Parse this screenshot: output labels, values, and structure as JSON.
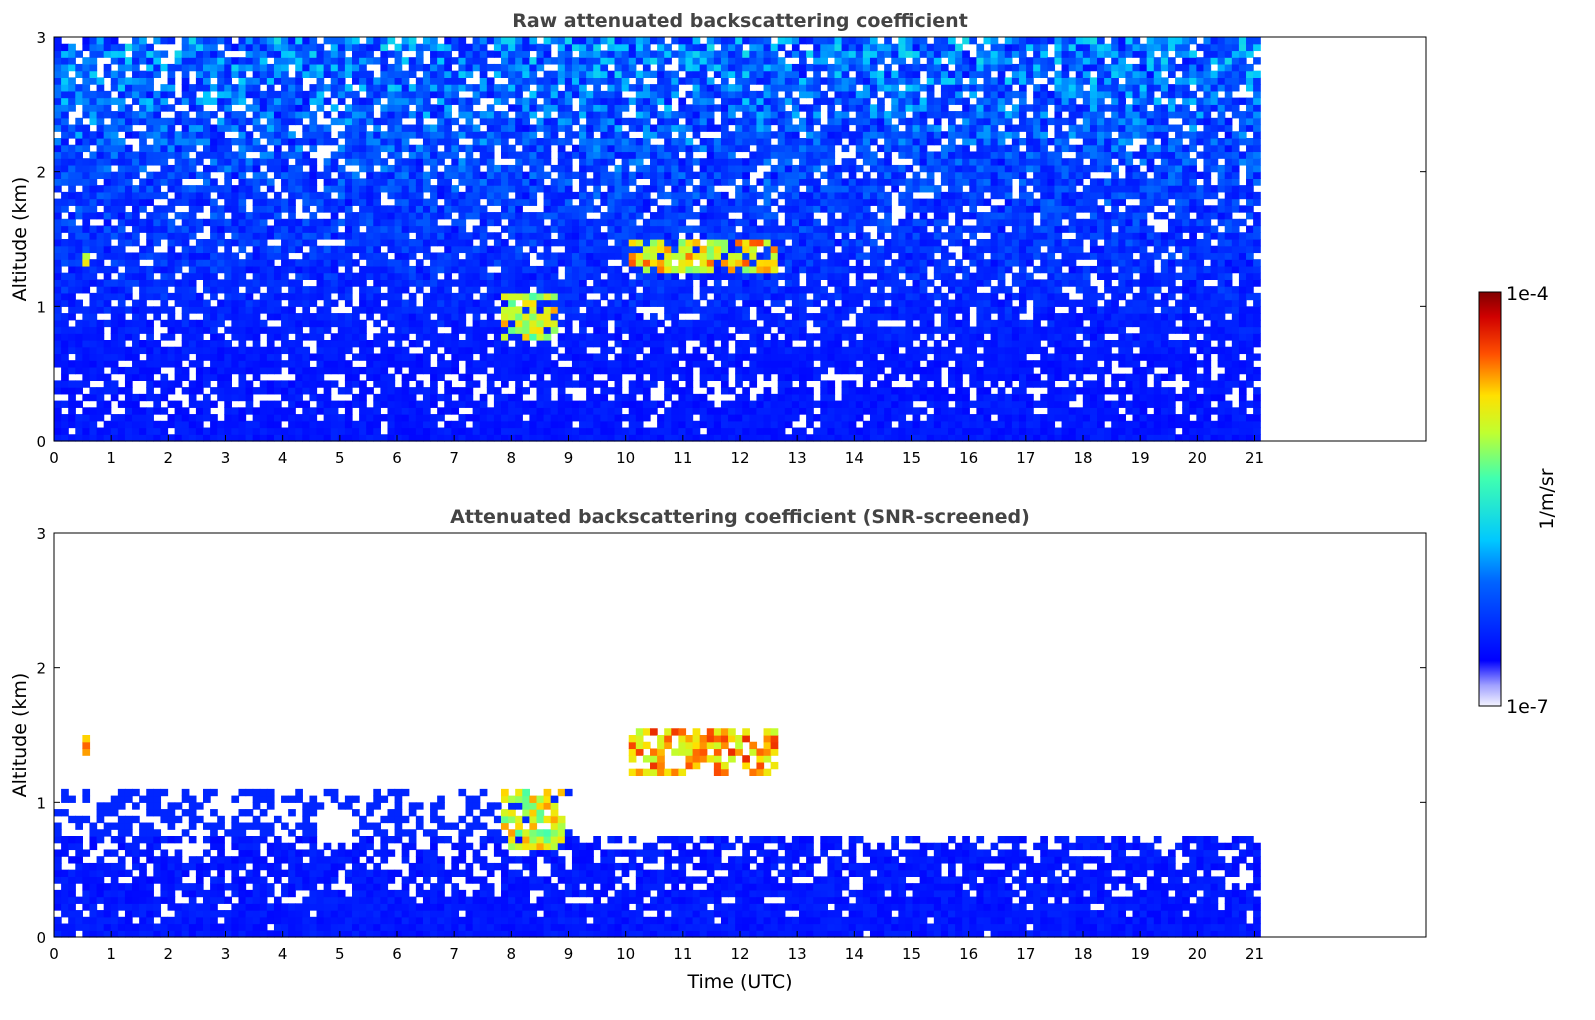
{
  "chart_data": [
    {
      "type": "heatmap",
      "title": "Raw attenuated backscattering coefficient",
      "xlabel": "",
      "ylabel": "Altitude (km)",
      "xlim": [
        0,
        24
      ],
      "ylim": [
        0,
        3
      ],
      "x_ticks": [
        "0",
        "1",
        "2",
        "3",
        "4",
        "5",
        "6",
        "7",
        "8",
        "9",
        "10",
        "11",
        "12",
        "13",
        "14",
        "15",
        "16",
        "17",
        "18",
        "19",
        "20",
        "21"
      ],
      "y_ticks": [
        "0",
        "1",
        "2",
        "3"
      ],
      "data_extent_hours": [
        0,
        21.1
      ],
      "colorscale": "log",
      "features": [
        {
          "desc": "dense low-level backscatter",
          "x": [
            0,
            21.1
          ],
          "y": [
            0,
            0.5
          ],
          "level": 0.18
        },
        {
          "desc": "noisy signal increasing with altitude",
          "x": [
            0,
            21.1
          ],
          "y": [
            0.5,
            3.0
          ],
          "level": 0.35
        },
        {
          "desc": "cloud layer",
          "x": [
            0.5,
            0.6
          ],
          "y": [
            1.3,
            1.45
          ],
          "level": 0.85
        },
        {
          "desc": "cloud layer",
          "x": [
            7.8,
            8.8
          ],
          "y": [
            0.75,
            1.1
          ],
          "level": 0.8
        },
        {
          "desc": "cloud layer",
          "x": [
            10.1,
            12.7
          ],
          "y": [
            1.25,
            1.5
          ],
          "level": 0.85
        }
      ]
    },
    {
      "type": "heatmap",
      "title": "Attenuated backscattering coefficient (SNR-screened)",
      "xlabel": "Time (UTC)",
      "ylabel": "Altitude (km)",
      "xlim": [
        0,
        24
      ],
      "ylim": [
        0,
        3
      ],
      "x_ticks": [
        "0",
        "1",
        "2",
        "3",
        "4",
        "5",
        "6",
        "7",
        "8",
        "9",
        "10",
        "11",
        "12",
        "13",
        "14",
        "15",
        "16",
        "17",
        "18",
        "19",
        "20",
        "21"
      ],
      "y_ticks": [
        "0",
        "1",
        "2",
        "3"
      ],
      "data_extent_hours": [
        0,
        21.1
      ],
      "colorscale": "log",
      "features": [
        {
          "desc": "boundary layer aerosol",
          "x": [
            0,
            21.1
          ],
          "y": [
            0,
            0.75
          ],
          "level": 0.18
        },
        {
          "desc": "residual layer top",
          "x": [
            0,
            9
          ],
          "y": [
            0.75,
            1.1
          ],
          "level": 0.18
        },
        {
          "desc": "cloud layer",
          "x": [
            0.5,
            0.6
          ],
          "y": [
            1.3,
            1.48
          ],
          "level": 0.9
        },
        {
          "desc": "cloud layer",
          "x": [
            7.8,
            8.9
          ],
          "y": [
            0.65,
            1.12
          ],
          "level": 0.8
        },
        {
          "desc": "cloud layer",
          "x": [
            10.1,
            12.7
          ],
          "y": [
            1.2,
            1.55
          ],
          "level": 0.9
        }
      ]
    }
  ],
  "colorbar": {
    "label": "1/m/sr",
    "min_label": "1e-7",
    "max_label": "1e-4",
    "colormap": "jet"
  }
}
